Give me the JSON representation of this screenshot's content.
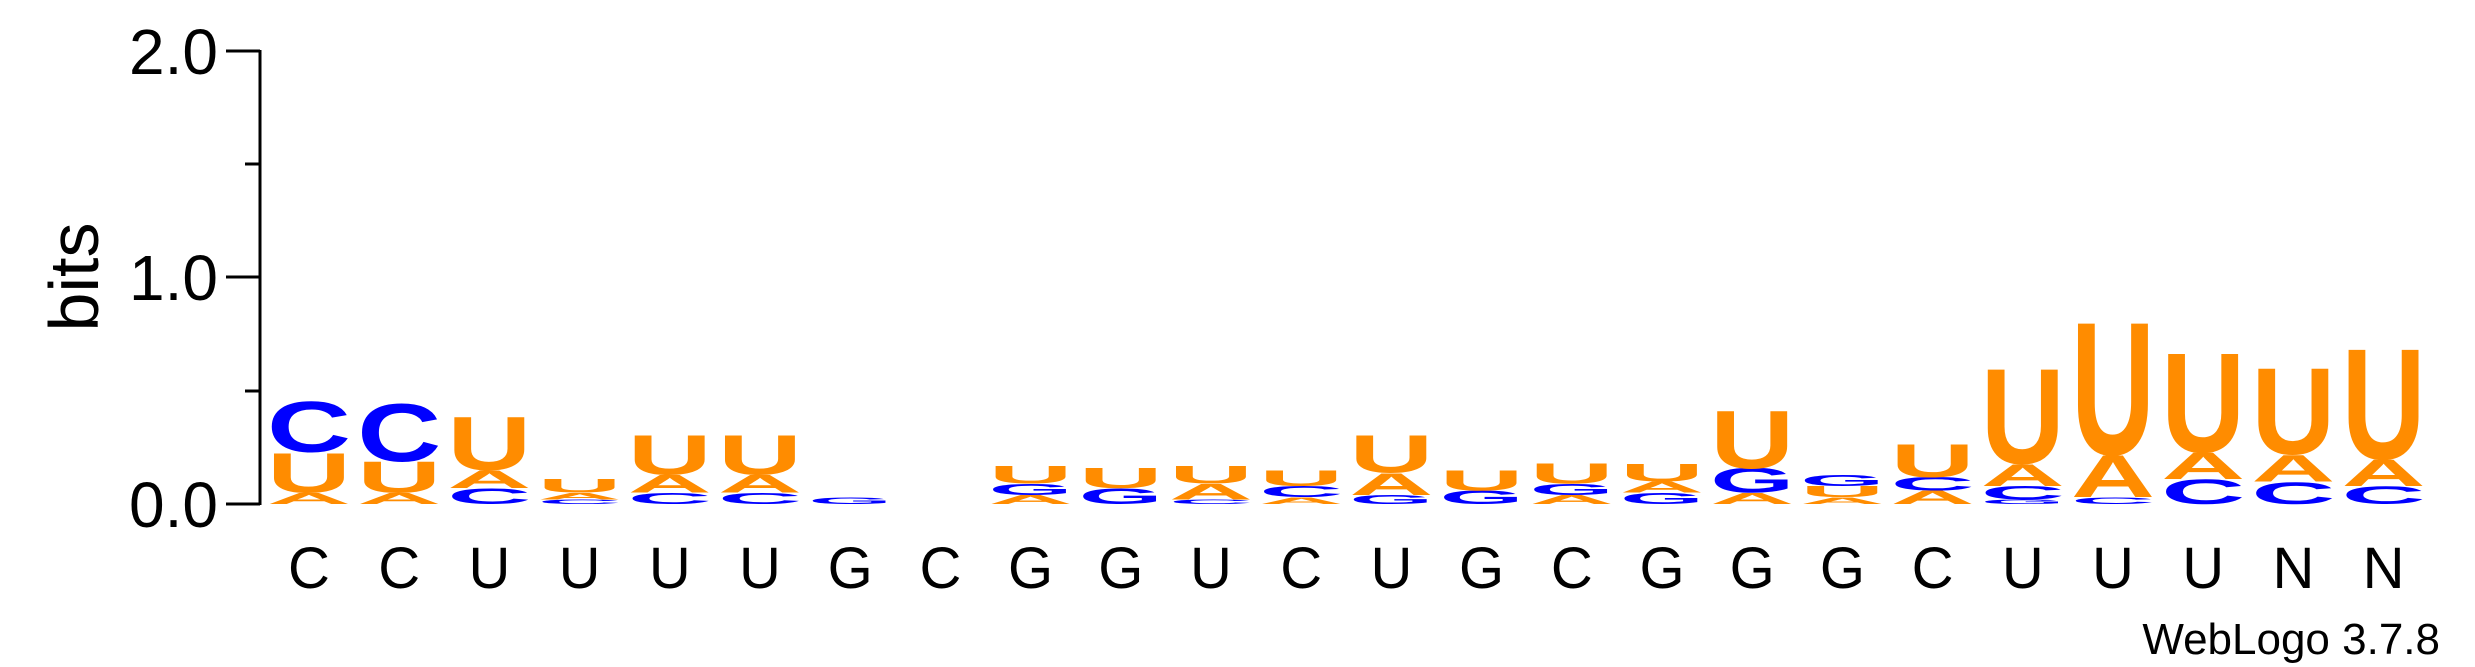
{
  "chart_data": {
    "type": "sequence-logo",
    "ylabel": "bits",
    "ylim": [
      0,
      2
    ],
    "yticks": [
      "0.0",
      "1.0",
      "2.0"
    ],
    "positions": [
      "C",
      "C",
      "U",
      "U",
      "U",
      "U",
      "G",
      "C",
      "G",
      "G",
      "U",
      "C",
      "U",
      "G",
      "C",
      "G",
      "G",
      "G",
      "C",
      "U",
      "U",
      "U",
      "N",
      "N"
    ],
    "colors": {
      "A": "#ff8c00",
      "U": "#ff8c00",
      "C": "#0000ff",
      "G": "#0000ff"
    },
    "stacks": [
      [
        {
          "l": "A",
          "h": 0.05
        },
        {
          "l": "U",
          "h": 0.18
        },
        {
          "l": "C",
          "h": 0.23
        }
      ],
      [
        {
          "l": "A",
          "h": 0.05
        },
        {
          "l": "U",
          "h": 0.14
        },
        {
          "l": "C",
          "h": 0.26
        }
      ],
      [
        {
          "l": "C",
          "h": 0.07
        },
        {
          "l": "A",
          "h": 0.08
        },
        {
          "l": "U",
          "h": 0.24
        }
      ],
      [
        {
          "l": "C",
          "h": 0.02
        },
        {
          "l": "A",
          "h": 0.03
        },
        {
          "l": "U",
          "h": 0.06
        }
      ],
      [
        {
          "l": "C",
          "h": 0.05
        },
        {
          "l": "A",
          "h": 0.08
        },
        {
          "l": "U",
          "h": 0.18
        }
      ],
      [
        {
          "l": "C",
          "h": 0.05
        },
        {
          "l": "A",
          "h": 0.08
        },
        {
          "l": "U",
          "h": 0.18
        }
      ],
      [
        {
          "l": "G",
          "h": 0.03
        }
      ],
      [],
      [
        {
          "l": "A",
          "h": 0.04
        },
        {
          "l": "G",
          "h": 0.05
        },
        {
          "l": "U",
          "h": 0.08
        }
      ],
      [
        {
          "l": "G",
          "h": 0.07
        },
        {
          "l": "U",
          "h": 0.09
        }
      ],
      [
        {
          "l": "C",
          "h": 0.02
        },
        {
          "l": "A",
          "h": 0.07
        },
        {
          "l": "U",
          "h": 0.08
        }
      ],
      [
        {
          "l": "A",
          "h": 0.03
        },
        {
          "l": "C",
          "h": 0.05
        },
        {
          "l": "U",
          "h": 0.07
        }
      ],
      [
        {
          "l": "G",
          "h": 0.04
        },
        {
          "l": "A",
          "h": 0.1
        },
        {
          "l": "U",
          "h": 0.17
        }
      ],
      [
        {
          "l": "G",
          "h": 0.06
        },
        {
          "l": "U",
          "h": 0.09
        }
      ],
      [
        {
          "l": "A",
          "h": 0.04
        },
        {
          "l": "G",
          "h": 0.05
        },
        {
          "l": "U",
          "h": 0.09
        }
      ],
      [
        {
          "l": "G",
          "h": 0.05
        },
        {
          "l": "A",
          "h": 0.05
        },
        {
          "l": "U",
          "h": 0.08
        }
      ],
      [
        {
          "l": "A",
          "h": 0.05
        },
        {
          "l": "G",
          "h": 0.11
        },
        {
          "l": "U",
          "h": 0.26
        }
      ],
      [
        {
          "l": "A",
          "h": 0.03
        },
        {
          "l": "U",
          "h": 0.05
        },
        {
          "l": "G",
          "h": 0.05
        }
      ],
      [
        {
          "l": "A",
          "h": 0.06
        },
        {
          "l": "C",
          "h": 0.06
        },
        {
          "l": "U",
          "h": 0.15
        }
      ],
      [
        {
          "l": "G",
          "h": 0.02
        },
        {
          "l": "C",
          "h": 0.06
        },
        {
          "l": "A",
          "h": 0.1
        },
        {
          "l": "U",
          "h": 0.43
        }
      ],
      [
        {
          "l": "C",
          "h": 0.03
        },
        {
          "l": "A",
          "h": 0.19
        },
        {
          "l": "U",
          "h": 0.6
        }
      ],
      [
        {
          "l": "C",
          "h": 0.11
        },
        {
          "l": "A",
          "h": 0.12
        },
        {
          "l": "U",
          "h": 0.45
        }
      ],
      [
        {
          "l": "C",
          "h": 0.1
        },
        {
          "l": "A",
          "h": 0.12
        },
        {
          "l": "U",
          "h": 0.39
        }
      ],
      [
        {
          "l": "C",
          "h": 0.08
        },
        {
          "l": "A",
          "h": 0.12
        },
        {
          "l": "U",
          "h": 0.5
        }
      ]
    ]
  },
  "credit": "WebLogo 3.7.8"
}
